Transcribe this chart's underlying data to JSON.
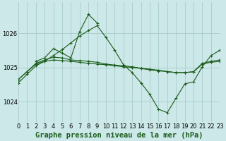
{
  "background_color": "#cce8e8",
  "grid_color": "#aacccc",
  "line_color": "#1a5c1a",
  "title": "Graphe pression niveau de la mer (hPa)",
  "xlim": [
    0,
    23
  ],
  "ylim": [
    1023.4,
    1026.9
  ],
  "yticks": [
    1024,
    1025,
    1026
  ],
  "xticks": [
    0,
    1,
    2,
    3,
    4,
    5,
    6,
    7,
    8,
    9,
    10,
    11,
    12,
    13,
    14,
    15,
    16,
    17,
    18,
    19,
    20,
    21,
    22,
    23
  ],
  "series1_x": [
    0,
    1,
    2,
    3,
    4,
    5,
    6,
    7,
    8,
    9,
    10,
    11,
    12,
    13,
    14,
    15,
    16,
    17,
    18,
    19,
    20,
    21,
    22,
    23
  ],
  "series1_y": [
    1024.65,
    1024.88,
    1025.1,
    1025.18,
    1025.22,
    1025.2,
    1025.18,
    1025.15,
    1025.12,
    1025.1,
    1025.08,
    1025.05,
    1025.02,
    1025.0,
    1024.97,
    1024.93,
    1024.9,
    1024.88,
    1024.85,
    1024.85,
    1024.87,
    1025.1,
    1025.15,
    1025.18
  ],
  "series2_x": [
    0,
    1,
    2,
    3,
    4,
    5,
    6,
    7,
    8,
    9,
    10,
    11,
    12,
    13,
    14,
    15,
    16,
    17,
    18,
    19,
    20,
    21,
    22,
    23
  ],
  "series2_y": [
    1024.65,
    1024.88,
    1025.12,
    1025.22,
    1025.3,
    1025.28,
    1025.22,
    1025.2,
    1025.18,
    1025.15,
    1025.1,
    1025.07,
    1025.05,
    1025.02,
    1024.98,
    1024.95,
    1024.92,
    1024.88,
    1024.85,
    1024.85,
    1024.88,
    1025.12,
    1025.18,
    1025.22
  ],
  "series3_x": [
    0,
    1,
    2,
    3,
    4,
    5,
    6,
    7,
    8,
    9,
    10,
    11,
    12,
    13,
    14,
    15,
    16,
    17,
    18,
    19,
    20,
    21,
    22,
    23
  ],
  "series3_y": [
    1024.55,
    1024.8,
    1025.05,
    1025.18,
    1025.35,
    1025.52,
    1025.72,
    1025.92,
    1026.08,
    1026.22,
    1025.88,
    1025.5,
    1025.08,
    1024.85,
    1024.55,
    1024.22,
    1023.78,
    1023.68,
    1024.1,
    1024.52,
    1024.58,
    1025.02,
    1025.35,
    1025.5
  ],
  "series4_x": [
    2,
    3,
    4,
    5,
    6,
    7,
    8,
    9
  ],
  "series4_y": [
    1025.18,
    1025.28,
    1025.55,
    1025.42,
    1025.28,
    1026.05,
    1026.55,
    1026.3
  ],
  "title_fontsize": 7.5,
  "tick_fontsize": 6
}
